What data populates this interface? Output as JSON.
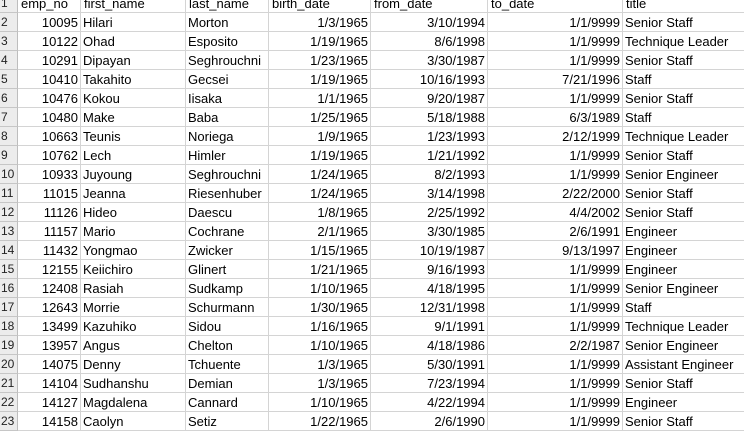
{
  "sheet": {
    "headers": [
      "emp_no",
      "first_name",
      "last_name",
      "birth_date",
      "from_date",
      "to_date",
      "title"
    ],
    "rows": [
      [
        "10095",
        "Hilari",
        "Morton",
        "1/3/1965",
        "3/10/1994",
        "1/1/9999",
        "Senior Staff"
      ],
      [
        "10122",
        "Ohad",
        "Esposito",
        "1/19/1965",
        "8/6/1998",
        "1/1/9999",
        "Technique Leader"
      ],
      [
        "10291",
        "Dipayan",
        "Seghrouchni",
        "1/23/1965",
        "3/30/1987",
        "1/1/9999",
        "Senior Staff"
      ],
      [
        "10410",
        "Takahito",
        "Gecsei",
        "1/19/1965",
        "10/16/1993",
        "7/21/1996",
        "Staff"
      ],
      [
        "10476",
        "Kokou",
        "Iisaka",
        "1/1/1965",
        "9/20/1987",
        "1/1/9999",
        "Senior Staff"
      ],
      [
        "10480",
        "Make",
        "Baba",
        "1/25/1965",
        "5/18/1988",
        "6/3/1989",
        "Staff"
      ],
      [
        "10663",
        "Teunis",
        "Noriega",
        "1/9/1965",
        "1/23/1993",
        "2/12/1999",
        "Technique Leader"
      ],
      [
        "10762",
        "Lech",
        "Himler",
        "1/19/1965",
        "1/21/1992",
        "1/1/9999",
        "Senior Staff"
      ],
      [
        "10933",
        "Juyoung",
        "Seghrouchni",
        "1/24/1965",
        "8/2/1993",
        "1/1/9999",
        "Senior Engineer"
      ],
      [
        "11015",
        "Jeanna",
        "Riesenhuber",
        "1/24/1965",
        "3/14/1998",
        "2/22/2000",
        "Senior Staff"
      ],
      [
        "11126",
        "Hideo",
        "Daescu",
        "1/8/1965",
        "2/25/1992",
        "4/4/2002",
        "Senior Staff"
      ],
      [
        "11157",
        "Mario",
        "Cochrane",
        "2/1/1965",
        "3/30/1985",
        "2/6/1991",
        "Engineer"
      ],
      [
        "11432",
        "Yongmao",
        "Zwicker",
        "1/15/1965",
        "10/19/1987",
        "9/13/1997",
        "Engineer"
      ],
      [
        "12155",
        "Keiichiro",
        "Glinert",
        "1/21/1965",
        "9/16/1993",
        "1/1/9999",
        "Engineer"
      ],
      [
        "12408",
        "Rasiah",
        "Sudkamp",
        "1/10/1965",
        "4/18/1995",
        "1/1/9999",
        "Senior Engineer"
      ],
      [
        "12643",
        "Morrie",
        "Schurmann",
        "1/30/1965",
        "12/31/1998",
        "1/1/9999",
        "Staff"
      ],
      [
        "13499",
        "Kazuhiko",
        "Sidou",
        "1/16/1965",
        "9/1/1991",
        "1/1/9999",
        "Technique Leader"
      ],
      [
        "13957",
        "Angus",
        "Chelton",
        "1/10/1965",
        "4/18/1986",
        "2/2/1987",
        "Senior Engineer"
      ],
      [
        "14075",
        "Denny",
        "Tchuente",
        "1/3/1965",
        "5/30/1991",
        "1/1/9999",
        "Assistant Engineer"
      ],
      [
        "14104",
        "Sudhanshu",
        "Demian",
        "1/3/1965",
        "7/23/1994",
        "1/1/9999",
        "Senior Staff"
      ],
      [
        "14127",
        "Magdalena",
        "Cannard",
        "1/10/1965",
        "4/22/1994",
        "1/1/9999",
        "Engineer"
      ],
      [
        "14158",
        "Caolyn",
        "Setiz",
        "1/22/1965",
        "2/6/1990",
        "1/1/9999",
        "Senior Staff"
      ]
    ]
  }
}
